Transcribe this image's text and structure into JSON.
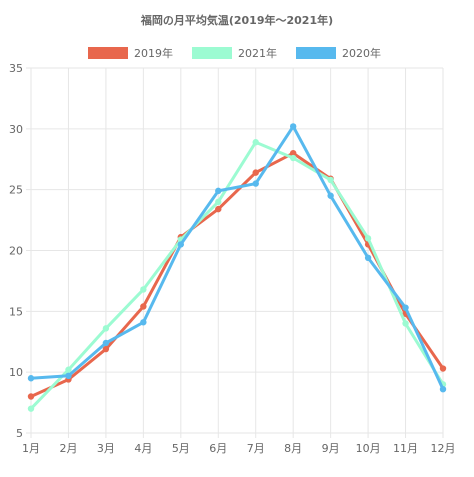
{
  "chart_data": {
    "type": "line",
    "title": "福岡の月平均気温(2019年～2021年)",
    "categories": [
      "1月",
      "2月",
      "3月",
      "4月",
      "5月",
      "6月",
      "7月",
      "8月",
      "9月",
      "10月",
      "11月",
      "12月"
    ],
    "ylim": [
      5,
      35
    ],
    "yticks": [
      5,
      10,
      15,
      20,
      25,
      30,
      35
    ],
    "grid": true,
    "legend_position": "top",
    "series": [
      {
        "name": "2019年",
        "color": "#E8674D",
        "values": [
          8.0,
          9.4,
          11.9,
          15.4,
          21.1,
          23.4,
          26.4,
          28.0,
          25.9,
          20.5,
          14.8,
          10.3
        ]
      },
      {
        "name": "2021年",
        "color": "#9CFBD2",
        "values": [
          7.0,
          10.2,
          13.6,
          16.8,
          20.9,
          24.0,
          28.9,
          27.6,
          25.8,
          21.0,
          14.0,
          9.0
        ]
      },
      {
        "name": "2020年",
        "color": "#57B9EE",
        "values": [
          9.5,
          9.7,
          12.4,
          14.1,
          20.5,
          24.9,
          25.5,
          30.2,
          24.5,
          19.4,
          15.3,
          8.6
        ]
      }
    ]
  }
}
